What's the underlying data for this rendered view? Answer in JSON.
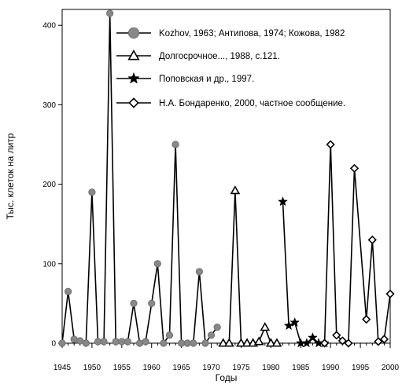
{
  "chart_data": {
    "type": "line",
    "title": "",
    "xlabel": "Годы",
    "ylabel": "Тыс. клеток на литр",
    "xlim": [
      1945,
      2000
    ],
    "ylim": [
      0,
      420
    ],
    "x_ticks": [
      1945,
      1950,
      1955,
      1960,
      1965,
      1970,
      1975,
      1980,
      1985,
      1990,
      1995,
      2000
    ],
    "y_ticks": [
      0,
      100,
      200,
      300,
      400
    ],
    "grid": false,
    "legend_position": "top-right",
    "series": [
      {
        "name": "Kozhov, 1963; Антипова, 1974; Кожова, 1982",
        "marker": "circle",
        "x": [
          1945,
          1946,
          1947,
          1948,
          1949,
          1950,
          1951,
          1952,
          1953,
          1954,
          1955,
          1956,
          1957,
          1958,
          1959,
          1960,
          1961,
          1962,
          1963,
          1964,
          1965,
          1966,
          1967,
          1968,
          1969,
          1970,
          1971
        ],
        "y": [
          0,
          65,
          5,
          3,
          0,
          190,
          2,
          2,
          415,
          2,
          2,
          2,
          50,
          0,
          2,
          50,
          100,
          0,
          10,
          250,
          0,
          0,
          0,
          90,
          0,
          10,
          20
        ]
      },
      {
        "name": "Долгосрочное..., 1988, с.121.",
        "marker": "triangle",
        "x": [
          1972,
          1973,
          1974,
          1975,
          1976,
          1977,
          1978,
          1979,
          1980,
          1981
        ],
        "y": [
          0,
          0,
          192,
          0,
          0,
          0,
          2,
          20,
          0,
          0
        ]
      },
      {
        "name": "Поповская и др., 1997.",
        "marker": "star",
        "x": [
          1982,
          1983,
          1984,
          1985,
          1986,
          1987,
          1988,
          1989
        ],
        "y": [
          178,
          22,
          26,
          0,
          0,
          7,
          0,
          0
        ]
      },
      {
        "name": "Н.А. Бондаренко, 2000, частное сообщение.",
        "marker": "diamond",
        "x": [
          1989,
          1990,
          1991,
          1992,
          1993,
          1994,
          1996,
          1997,
          1998,
          1999,
          2000
        ],
        "y": [
          0,
          250,
          10,
          3,
          0,
          220,
          30,
          130,
          2,
          5,
          62
        ]
      }
    ]
  }
}
